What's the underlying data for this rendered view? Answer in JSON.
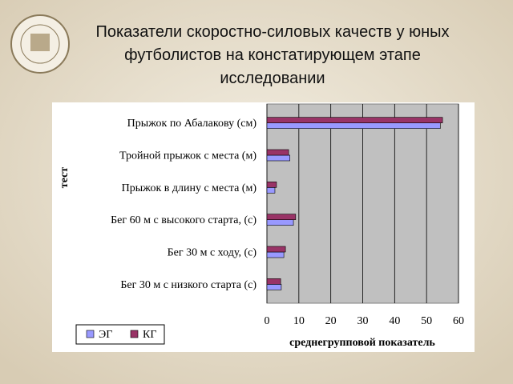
{
  "chart_data": {
    "type": "bar",
    "orientation": "horizontal",
    "title": [
      "Показатели скоростно-силовых качеств у юных",
      "футболистов  на констатирующем этапе",
      "исследовании"
    ],
    "x_label": "среднегрупповой показатель",
    "y_label": "тест",
    "categories": [
      "Прыжок по Абалакову (см)",
      "Тройной прыжок с места (м)",
      "Прыжок в длину с места (м)",
      "Бег 60 м с высокого старта, (с)",
      "Бег 30 м с ходу, (с)",
      "Бег 30 м с низкого старта (с)"
    ],
    "series": [
      {
        "name": "ЭГ",
        "color": "#9999ff",
        "values": [
          54.3,
          7.2,
          2.5,
          8.3,
          5.3,
          4.5
        ]
      },
      {
        "name": "КГ",
        "color": "#993366",
        "values": [
          55,
          6.8,
          3,
          9,
          5.8,
          4.3
        ]
      }
    ],
    "xlim": [
      0,
      60
    ],
    "xticks": [
      0,
      10,
      20,
      30,
      40,
      50,
      60
    ],
    "grid": true,
    "legend": "bottom-left"
  }
}
